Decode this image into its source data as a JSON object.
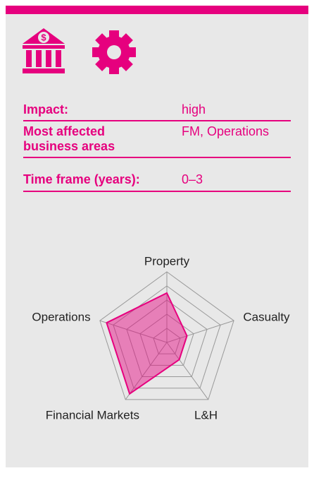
{
  "info": {
    "rows": [
      {
        "label": "Impact:",
        "value": "high"
      },
      {
        "label": "Most affected business areas",
        "value": "FM, Operations"
      },
      {
        "label": "Time frame (years):",
        "value": "0–3"
      }
    ]
  },
  "chart_data": {
    "type": "radar",
    "categories": [
      "Property",
      "Casualty",
      "L&H",
      "Financial Markets",
      "Operations"
    ],
    "values": [
      3.5,
      1.5,
      1.5,
      4.5,
      4.5
    ],
    "color": "#e6007e",
    "rlim": [
      0,
      5
    ],
    "rticks": [
      1,
      2,
      3,
      4,
      5
    ],
    "grid": true
  }
}
